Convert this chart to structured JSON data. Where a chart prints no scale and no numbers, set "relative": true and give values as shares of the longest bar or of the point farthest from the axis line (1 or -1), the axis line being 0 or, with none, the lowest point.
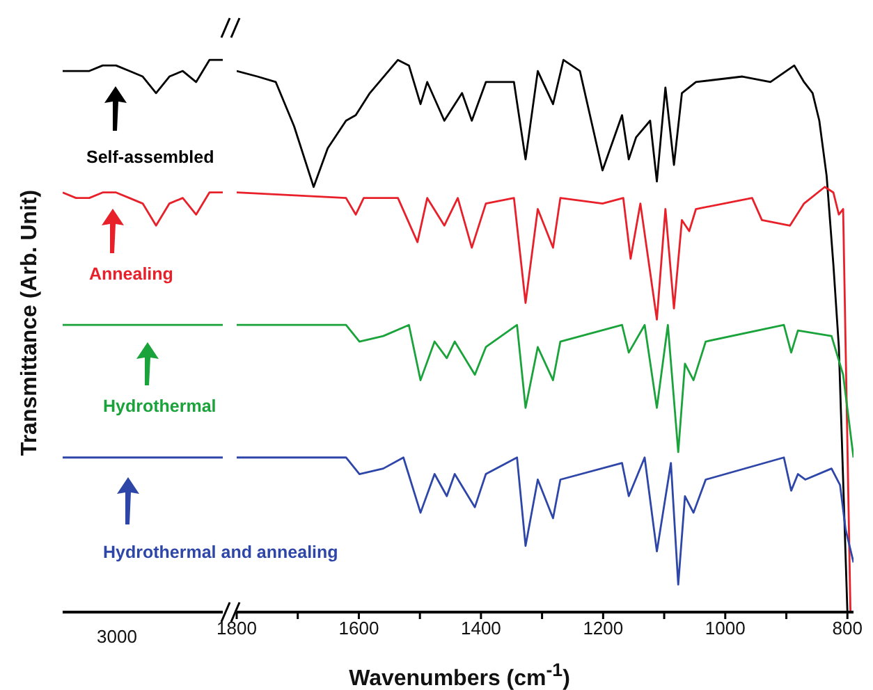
{
  "chart_data": [
    {
      "type": "line",
      "relative": true,
      "ylabel": "Transmittance (Arb. Unit)",
      "categories": [
        null,
        null,
        null,
        null,
        null,
        null,
        null,
        null,
        null,
        null,
        null,
        null,
        null
      ],
      "annotations": [
        "3000"
      ],
      "tick_labels": "x",
      "grid": false,
      "legend": false,
      "marker": "none",
      "line_style": "solid",
      "series": [
        {
          "name": "Self-assembled",
          "color": "#000000",
          "values": [
            0.98,
            0.98,
            0.98,
            0.99,
            0.99,
            0.98,
            0.97,
            0.94,
            0.97,
            0.98,
            0.96,
            1.0,
            1.0
          ]
        },
        {
          "name": "Annealing",
          "color": "#e8202a",
          "values": [
            0.76,
            0.75,
            0.75,
            0.76,
            0.76,
            0.75,
            0.74,
            0.7,
            0.74,
            0.75,
            0.72,
            0.76,
            0.76
          ]
        },
        {
          "name": "Hydrothermal",
          "color": "#1aa33a",
          "values": [
            0.52,
            0.52,
            0.52,
            0.52,
            0.52,
            0.52,
            0.52,
            0.52,
            0.52,
            0.52,
            0.52,
            0.52,
            0.52
          ]
        },
        {
          "name": "Hydrothermal and annealing",
          "color": "#2e46a8",
          "values": [
            0.28,
            0.28,
            0.28,
            0.28,
            0.28,
            0.28,
            0.28,
            0.28,
            0.28,
            0.28,
            0.28,
            0.28,
            0.28
          ]
        }
      ]
    },
    {
      "type": "line",
      "relative": true,
      "xlabel": "Wavenumbers (cm$^{-1}$)",
      "xlim": [
        1800,
        790
      ],
      "xticks": [
        1800,
        {
          "value": 1700,
          "label": null
        },
        1600,
        {
          "value": 1500,
          "label": null
        },
        1400,
        {
          "value": 1300,
          "label": null
        },
        1200,
        {
          "value": 1100,
          "label": null
        },
        1000,
        {
          "value": 900,
          "label": null
        },
        800
      ],
      "tick_labels": "x",
      "grid": false,
      "legend": false,
      "marker": "none",
      "line_style": "solid",
      "series": [
        {
          "color": "#000000",
          "x": [
            1800,
            1766,
            1736,
            1706,
            1674,
            1651,
            1621,
            1605,
            1582,
            1536,
            1518,
            1499,
            1488,
            1460,
            1431,
            1415,
            1392,
            1346,
            1327,
            1307,
            1282,
            1265,
            1238,
            1201,
            1169,
            1158,
            1146,
            1123,
            1112,
            1098,
            1084,
            1071,
            1048,
            972,
            926,
            887,
            871,
            857,
            846,
            834,
            823,
            814,
            800
          ],
          "values": [
            0.98,
            0.97,
            0.96,
            0.88,
            0.77,
            0.84,
            0.89,
            0.9,
            0.94,
            1.0,
            0.99,
            0.92,
            0.96,
            0.89,
            0.94,
            0.89,
            0.96,
            0.96,
            0.82,
            0.98,
            0.92,
            1.0,
            0.98,
            0.8,
            0.9,
            0.82,
            0.86,
            0.89,
            0.78,
            0.95,
            0.81,
            0.94,
            0.96,
            0.97,
            0.96,
            0.99,
            0.96,
            0.94,
            0.89,
            0.79,
            0.63,
            0.48,
            0
          ]
        },
        {
          "color": "#e8202a",
          "x": [
            1800,
            1621,
            1605,
            1592,
            1536,
            1504,
            1488,
            1460,
            1438,
            1415,
            1392,
            1346,
            1327,
            1307,
            1282,
            1270,
            1201,
            1167,
            1155,
            1139,
            1112,
            1098,
            1084,
            1071,
            1059,
            1048,
            956,
            940,
            894,
            871,
            837,
            823,
            814,
            807,
            795
          ],
          "values": [
            0.76,
            0.75,
            0.72,
            0.75,
            0.75,
            0.67,
            0.75,
            0.7,
            0.75,
            0.66,
            0.74,
            0.75,
            0.56,
            0.73,
            0.66,
            0.75,
            0.74,
            0.75,
            0.64,
            0.74,
            0.53,
            0.73,
            0.55,
            0.71,
            0.69,
            0.73,
            0.75,
            0.71,
            0.7,
            0.74,
            0.77,
            0.76,
            0.72,
            0.73,
            0
          ]
        },
        {
          "color": "#1aa33a",
          "x": [
            1800,
            1621,
            1599,
            1560,
            1518,
            1499,
            1476,
            1456,
            1443,
            1410,
            1392,
            1341,
            1327,
            1307,
            1282,
            1270,
            1169,
            1158,
            1132,
            1112,
            1094,
            1077,
            1066,
            1052,
            1032,
            904,
            892,
            881,
            826,
            807,
            790
          ],
          "values": [
            0.52,
            0.52,
            0.49,
            0.5,
            0.52,
            0.42,
            0.49,
            0.46,
            0.49,
            0.43,
            0.48,
            0.52,
            0.37,
            0.48,
            0.42,
            0.49,
            0.52,
            0.47,
            0.52,
            0.37,
            0.52,
            0.29,
            0.45,
            0.42,
            0.49,
            0.52,
            0.47,
            0.51,
            0.5,
            0.43,
            0.28
          ]
        },
        {
          "color": "#2e46a8",
          "x": [
            1800,
            1621,
            1599,
            1560,
            1527,
            1499,
            1476,
            1456,
            1443,
            1410,
            1392,
            1341,
            1327,
            1307,
            1282,
            1270,
            1169,
            1158,
            1132,
            1112,
            1089,
            1077,
            1066,
            1052,
            1032,
            904,
            892,
            881,
            869,
            826,
            812,
            803,
            790
          ],
          "values": [
            0.28,
            0.28,
            0.25,
            0.26,
            0.28,
            0.18,
            0.25,
            0.21,
            0.25,
            0.19,
            0.25,
            0.28,
            0.12,
            0.24,
            0.17,
            0.24,
            0.27,
            0.21,
            0.28,
            0.11,
            0.27,
            0.05,
            0.21,
            0.18,
            0.24,
            0.28,
            0.22,
            0.25,
            0.24,
            0.26,
            0.23,
            0.15,
            0.09
          ]
        }
      ]
    }
  ]
}
